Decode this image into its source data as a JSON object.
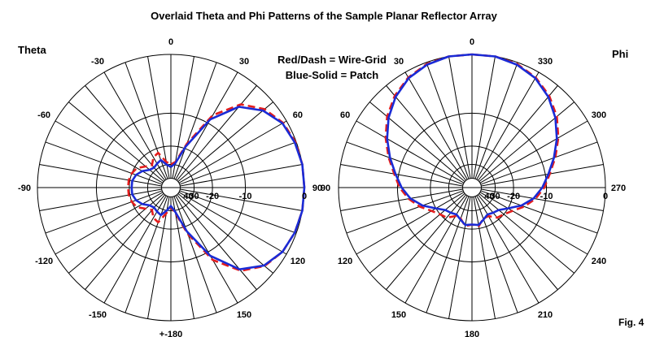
{
  "title": "Overlaid Theta and Phi Patterns of the Sample Planar Reflector Array",
  "legend": {
    "line1": "Red/Dash = Wire-Grid",
    "line2": "Blue-Solid = Patch"
  },
  "figure_label": "Fig. 4",
  "colors": {
    "wire_grid": "#e41c1c",
    "patch": "#1a2bd6",
    "grid": "#000000"
  },
  "chart_data": [
    {
      "type": "polar",
      "label": "Theta",
      "radial_ticks_db": [
        "0",
        "-10",
        "-20",
        "30",
        "40"
      ],
      "radial_range_db": [
        -40,
        0
      ],
      "radial_scale": "log-periodic dB",
      "angle_step_deg": 10,
      "angle_labels": [
        {
          "deg": 0,
          "text": "0"
        },
        {
          "deg": 30,
          "text": "30"
        },
        {
          "deg": 60,
          "text": "60"
        },
        {
          "deg": 90,
          "text": "90"
        },
        {
          "deg": 120,
          "text": "120"
        },
        {
          "deg": 150,
          "text": "150"
        },
        {
          "deg": 180,
          "text": "+-180"
        },
        {
          "deg": 210,
          "text": "-150"
        },
        {
          "deg": 240,
          "text": "-120"
        },
        {
          "deg": 270,
          "text": "-90"
        },
        {
          "deg": 300,
          "text": "-60"
        },
        {
          "deg": 330,
          "text": "-30"
        }
      ],
      "series": [
        {
          "name": "Wire-Grid",
          "style": "dashed",
          "color": "#e41c1c",
          "points": [
            [
              0,
              -30
            ],
            [
              10,
              -28
            ],
            [
              20,
              -18
            ],
            [
              30,
              -8
            ],
            [
              40,
              -3.5
            ],
            [
              50,
              -1.5
            ],
            [
              60,
              -0.5
            ],
            [
              70,
              -0.1
            ],
            [
              80,
              0
            ],
            [
              90,
              0
            ],
            [
              100,
              0
            ],
            [
              110,
              -0.2
            ],
            [
              120,
              -0.6
            ],
            [
              130,
              -1.5
            ],
            [
              140,
              -3.5
            ],
            [
              150,
              -8
            ],
            [
              160,
              -17
            ],
            [
              170,
              -28
            ],
            [
              180,
              -33
            ],
            [
              190,
              -28
            ],
            [
              200,
              -22
            ],
            [
              210,
              -23
            ],
            [
              220,
              -26
            ],
            [
              230,
              -24
            ],
            [
              240,
              -21
            ],
            [
              250,
              -20
            ],
            [
              260,
              -19.5
            ],
            [
              270,
              -19.5
            ],
            [
              280,
              -19.5
            ],
            [
              290,
              -20
            ],
            [
              300,
              -21
            ],
            [
              310,
              -24
            ],
            [
              320,
              -26
            ],
            [
              330,
              -23
            ],
            [
              340,
              -22
            ],
            [
              350,
              -28
            ],
            [
              360,
              -30
            ]
          ]
        },
        {
          "name": "Patch",
          "style": "solid",
          "color": "#1a2bd6",
          "points": [
            [
              0,
              -32
            ],
            [
              10,
              -29
            ],
            [
              20,
              -19
            ],
            [
              30,
              -9
            ],
            [
              40,
              -4
            ],
            [
              50,
              -1.8
            ],
            [
              60,
              -0.6
            ],
            [
              70,
              -0.2
            ],
            [
              80,
              0
            ],
            [
              90,
              0
            ],
            [
              100,
              0
            ],
            [
              110,
              -0.2
            ],
            [
              120,
              -0.6
            ],
            [
              130,
              -1.6
            ],
            [
              140,
              -3.8
            ],
            [
              150,
              -9
            ],
            [
              160,
              -18
            ],
            [
              170,
              -29
            ],
            [
              180,
              -34
            ],
            [
              190,
              -30
            ],
            [
              200,
              -26
            ],
            [
              210,
              -27
            ],
            [
              220,
              -28
            ],
            [
              230,
              -27
            ],
            [
              240,
              -24
            ],
            [
              250,
              -22
            ],
            [
              260,
              -21
            ],
            [
              270,
              -21
            ],
            [
              280,
              -21
            ],
            [
              290,
              -22
            ],
            [
              300,
              -24
            ],
            [
              310,
              -27
            ],
            [
              320,
              -28
            ],
            [
              330,
              -27
            ],
            [
              340,
              -26
            ],
            [
              350,
              -30
            ],
            [
              360,
              -32
            ]
          ]
        }
      ]
    },
    {
      "type": "polar",
      "label": "Phi",
      "radial_ticks_db": [
        "0",
        "-10",
        "-20",
        "30",
        "40"
      ],
      "radial_range_db": [
        -40,
        0
      ],
      "radial_scale": "log-periodic dB",
      "angle_step_deg": 10,
      "angle_labels": [
        {
          "deg": 0,
          "text": "0"
        },
        {
          "deg": 30,
          "text": "330"
        },
        {
          "deg": 60,
          "text": "300"
        },
        {
          "deg": 90,
          "text": "270"
        },
        {
          "deg": 120,
          "text": "240"
        },
        {
          "deg": 150,
          "text": "210"
        },
        {
          "deg": 180,
          "text": "180"
        },
        {
          "deg": 210,
          "text": "150"
        },
        {
          "deg": 240,
          "text": "120"
        },
        {
          "deg": 270,
          "text": "90"
        },
        {
          "deg": 300,
          "text": "60"
        },
        {
          "deg": 330,
          "text": "30"
        }
      ],
      "series": [
        {
          "name": "Wire-Grid",
          "style": "dashed",
          "color": "#e41c1c",
          "points": [
            [
              0,
              0
            ],
            [
              10,
              0
            ],
            [
              20,
              -0.2
            ],
            [
              30,
              -0.8
            ],
            [
              40,
              -1.8
            ],
            [
              50,
              -3.2
            ],
            [
              60,
              -5
            ],
            [
              70,
              -7
            ],
            [
              80,
              -9
            ],
            [
              90,
              -10.5
            ],
            [
              100,
              -12.5
            ],
            [
              110,
              -15
            ],
            [
              120,
              -18
            ],
            [
              130,
              -20
            ],
            [
              140,
              -21
            ],
            [
              150,
              -24
            ],
            [
              160,
              -24
            ],
            [
              170,
              -21
            ],
            [
              180,
              -22
            ],
            [
              190,
              -21
            ],
            [
              200,
              -24
            ],
            [
              210,
              -24
            ],
            [
              220,
              -21
            ],
            [
              230,
              -20
            ],
            [
              240,
              -18
            ],
            [
              250,
              -15
            ],
            [
              260,
              -12.5
            ],
            [
              270,
              -10.5
            ],
            [
              280,
              -9
            ],
            [
              290,
              -7
            ],
            [
              300,
              -5
            ],
            [
              310,
              -3.2
            ],
            [
              320,
              -1.8
            ],
            [
              330,
              -0.8
            ],
            [
              340,
              -0.2
            ],
            [
              350,
              0
            ],
            [
              360,
              0
            ]
          ]
        },
        {
          "name": "Patch",
          "style": "solid",
          "color": "#1a2bd6",
          "points": [
            [
              0,
              0
            ],
            [
              10,
              0
            ],
            [
              20,
              -0.3
            ],
            [
              30,
              -0.9
            ],
            [
              40,
              -2
            ],
            [
              50,
              -3.5
            ],
            [
              60,
              -5.3
            ],
            [
              70,
              -7.3
            ],
            [
              80,
              -9.3
            ],
            [
              90,
              -11
            ],
            [
              100,
              -13
            ],
            [
              110,
              -16
            ],
            [
              120,
              -20
            ],
            [
              130,
              -23
            ],
            [
              140,
              -24
            ],
            [
              150,
              -25
            ],
            [
              160,
              -23.5
            ],
            [
              170,
              -21.5
            ],
            [
              180,
              -22
            ],
            [
              190,
              -21.5
            ],
            [
              200,
              -23.5
            ],
            [
              210,
              -25
            ],
            [
              220,
              -24
            ],
            [
              230,
              -23
            ],
            [
              240,
              -20
            ],
            [
              250,
              -16
            ],
            [
              260,
              -13
            ],
            [
              270,
              -11
            ],
            [
              280,
              -9.3
            ],
            [
              290,
              -7.3
            ],
            [
              300,
              -5.3
            ],
            [
              310,
              -3.5
            ],
            [
              320,
              -2
            ],
            [
              330,
              -0.9
            ],
            [
              340,
              -0.3
            ],
            [
              350,
              0
            ],
            [
              360,
              0
            ]
          ]
        }
      ]
    }
  ]
}
